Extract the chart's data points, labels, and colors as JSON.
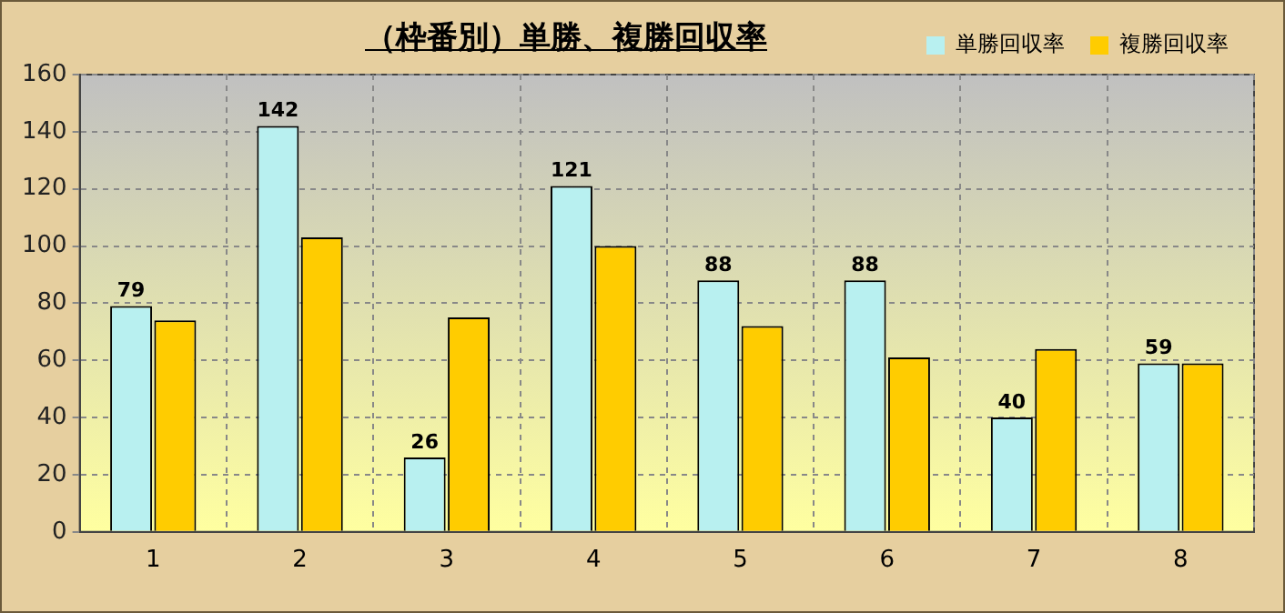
{
  "chart_data": {
    "type": "bar",
    "title": "（枠番別）単勝、複勝回収率",
    "categories": [
      "1",
      "2",
      "3",
      "4",
      "5",
      "6",
      "7",
      "8"
    ],
    "series": [
      {
        "name": "単勝回収率",
        "color": "#b8f0f0",
        "values": [
          79,
          142,
          26,
          121,
          88,
          88,
          40,
          59
        ],
        "value_labels": [
          "79",
          "142",
          "26",
          "121",
          "88",
          "88",
          "40",
          "59"
        ]
      },
      {
        "name": "複勝回収率",
        "color": "#ffcc00",
        "values": [
          74,
          103,
          75,
          100,
          72,
          61,
          64,
          59
        ]
      }
    ],
    "ylim": [
      0,
      160
    ],
    "yticks": [
      0,
      20,
      40,
      60,
      80,
      100,
      120,
      140,
      160
    ],
    "grid": true,
    "legend": "top right"
  }
}
